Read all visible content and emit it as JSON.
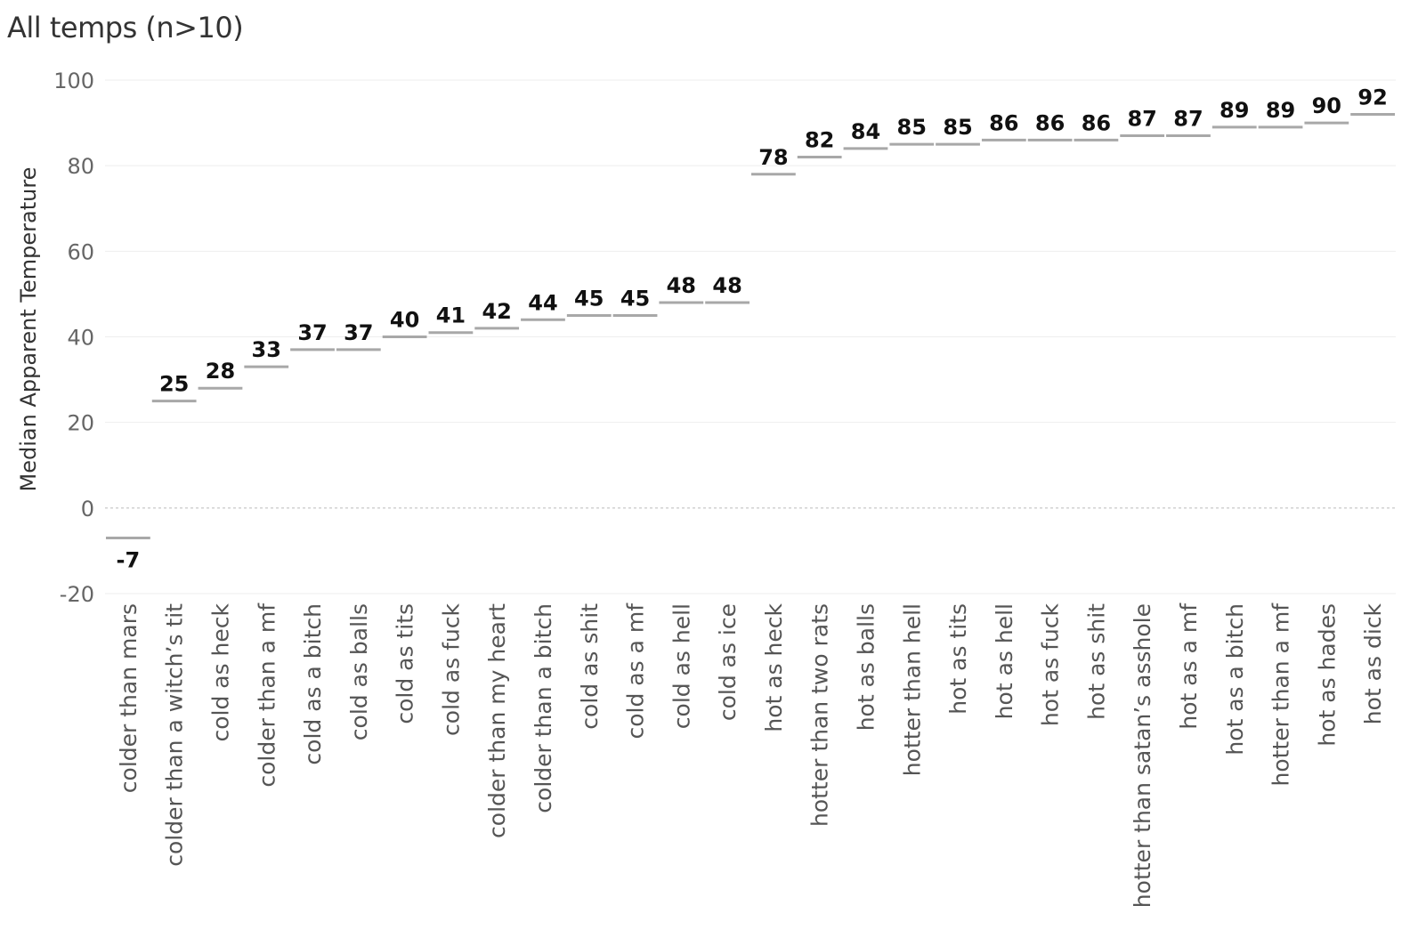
{
  "chart_data": {
    "type": "bar",
    "title": "All temps (n>10)",
    "xlabel": "",
    "ylabel": "Median Apparent Temperature",
    "ylim": [
      -20,
      100
    ],
    "yticks": [
      -20,
      0,
      20,
      40,
      60,
      80,
      100
    ],
    "grid": true,
    "categories": [
      "colder than mars",
      "colder than a witch’s tit",
      "cold as heck",
      "colder than a mf",
      "cold as a bitch",
      "cold as balls",
      "cold as tits",
      "cold as fuck",
      "colder than my heart",
      "colder than a bitch",
      "cold as shit",
      "cold as a mf",
      "cold as hell",
      "cold as ice",
      "hot as heck",
      "hotter than two rats",
      "hot as balls",
      "hotter than hell",
      "hot as tits",
      "hot as hell",
      "hot as fuck",
      "hot as shit",
      "hotter than satan’s asshole",
      "hot as a mf",
      "hot as a bitch",
      "hotter than a mf",
      "hot as hades",
      "hot as dick"
    ],
    "values": [
      -7,
      25,
      28,
      33,
      37,
      37,
      40,
      41,
      42,
      44,
      45,
      45,
      48,
      48,
      78,
      82,
      84,
      85,
      85,
      86,
      86,
      86,
      87,
      87,
      89,
      89,
      90,
      92
    ],
    "colors": {
      "mark": "#a8a8a8",
      "grid": "#eeeeee",
      "zero_line": "#bbbbbb",
      "data_label": "#111111",
      "tick_label": "#666666",
      "category_label": "#555555"
    }
  }
}
